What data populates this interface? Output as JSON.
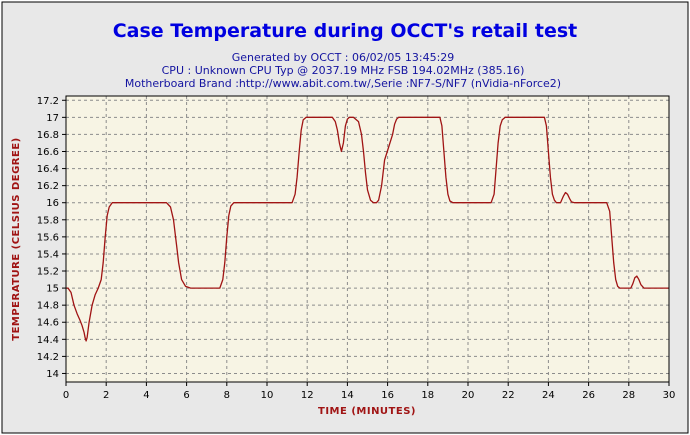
{
  "colors": {
    "background": "#ffffff",
    "frame": "#e8e8e8",
    "plot_bg": "#f7f4e4",
    "grid": "#8c8c8c",
    "title": "#0000e0",
    "info": "#1414a0",
    "axis_label": "#a01414",
    "series": "#a01414"
  },
  "header": {
    "title": "Case Temperature during OCCT's retail test",
    "info_lines": [
      "Generated by OCCT : 06/02/05 13:45:29",
      "CPU : Unknown CPU Typ @ 2037.19 MHz FSB 194.02MHz (385.16)",
      "Motherboard Brand :http://www.abit.com.tw/,Serie :NF7-S/NF7 (nVidia-nForce2)"
    ]
  },
  "chart_data": {
    "type": "line",
    "title": "Case Temperature during OCCT's retail test",
    "xlabel": "TIME (MINUTES)",
    "ylabel": "TEMPERATURE (CELSIUS DEGREE)",
    "xlim": [
      0,
      30
    ],
    "ylim": [
      13.9,
      17.25
    ],
    "x_ticks": [
      0,
      2,
      4,
      6,
      8,
      10,
      12,
      14,
      16,
      18,
      20,
      22,
      24,
      26,
      28,
      30
    ],
    "y_ticks": [
      14,
      14.2,
      14.4,
      14.6,
      14.8,
      15,
      15.2,
      15.4,
      15.6,
      15.8,
      16,
      16.2,
      16.4,
      16.6,
      16.8,
      17,
      17.2
    ],
    "y_tick_labels": [
      "14",
      "14.2",
      "14.4",
      "14.6",
      "14.8",
      "15",
      "15.2",
      "15.4",
      "15.6",
      "15.8",
      "16",
      "16.2",
      "16.4",
      "16.6",
      "16.8",
      "17",
      "17.2"
    ],
    "grid": true,
    "legend": "none",
    "series": [
      {
        "x": [
          0,
          0.1,
          0.25,
          0.4,
          0.55,
          0.7,
          0.8,
          0.9,
          0.95,
          1.0,
          1.05,
          1.15,
          1.3,
          1.45,
          1.6,
          1.75,
          1.85,
          1.95,
          2.05,
          2.15,
          2.3,
          2.5,
          5.0,
          5.2,
          5.35,
          5.5,
          5.6,
          5.75,
          5.95,
          6.2,
          7.65,
          7.8,
          7.9,
          8.0,
          8.1,
          8.2,
          8.35,
          8.5,
          11.25,
          11.4,
          11.5,
          11.6,
          11.7,
          11.8,
          11.95,
          12.1,
          13.25,
          13.4,
          13.5,
          13.6,
          13.7,
          13.8,
          13.9,
          14.0,
          14.1,
          14.2,
          14.3,
          14.55,
          14.7,
          14.8,
          14.9,
          15.0,
          15.15,
          15.3,
          15.45,
          15.55,
          15.7,
          15.85,
          16.25,
          16.35,
          16.45,
          16.55,
          16.65,
          16.75,
          16.9,
          17.05,
          18.6,
          18.7,
          18.8,
          18.9,
          19.0,
          19.1,
          19.25,
          19.4,
          21.15,
          21.3,
          21.4,
          21.5,
          21.6,
          21.7,
          21.85,
          22.0,
          23.8,
          23.9,
          24.0,
          24.1,
          24.2,
          24.3,
          24.4,
          24.6,
          24.75,
          24.85,
          24.95,
          25.05,
          25.15,
          25.3,
          25.45,
          25.6,
          26.9,
          27.05,
          27.15,
          27.25,
          27.35,
          27.45,
          27.55,
          27.7,
          28.1,
          28.2,
          28.3,
          28.4,
          28.5,
          28.6,
          28.75,
          28.9,
          30.0
        ],
        "y": [
          15.0,
          15.0,
          14.95,
          14.8,
          14.7,
          14.62,
          14.56,
          14.48,
          14.42,
          14.38,
          14.42,
          14.6,
          14.8,
          14.92,
          15.0,
          15.1,
          15.3,
          15.6,
          15.85,
          15.95,
          16.0,
          16.0,
          16.0,
          15.95,
          15.8,
          15.5,
          15.3,
          15.1,
          15.02,
          15.0,
          15.0,
          15.1,
          15.3,
          15.6,
          15.85,
          15.96,
          16.0,
          16.0,
          16.0,
          16.1,
          16.3,
          16.6,
          16.85,
          16.97,
          17.0,
          17.0,
          17.0,
          16.95,
          16.85,
          16.7,
          16.6,
          16.7,
          16.9,
          16.98,
          17.0,
          17.0,
          17.0,
          16.95,
          16.8,
          16.6,
          16.35,
          16.15,
          16.03,
          16.0,
          16.0,
          16.03,
          16.2,
          16.5,
          16.8,
          16.92,
          16.98,
          17.0,
          17.0,
          17.0,
          17.0,
          17.0,
          17.0,
          16.9,
          16.6,
          16.3,
          16.1,
          16.02,
          16.0,
          16.0,
          16.0,
          16.1,
          16.4,
          16.7,
          16.9,
          16.97,
          17.0,
          17.0,
          17.0,
          16.9,
          16.6,
          16.3,
          16.1,
          16.03,
          16.0,
          16.0,
          16.08,
          16.12,
          16.1,
          16.05,
          16.01,
          16.0,
          16.0,
          16.0,
          16.0,
          15.9,
          15.6,
          15.3,
          15.1,
          15.02,
          15.0,
          15.0,
          15.0,
          15.05,
          15.12,
          15.14,
          15.1,
          15.04,
          15.0,
          15.0,
          15.0
        ]
      }
    ]
  }
}
